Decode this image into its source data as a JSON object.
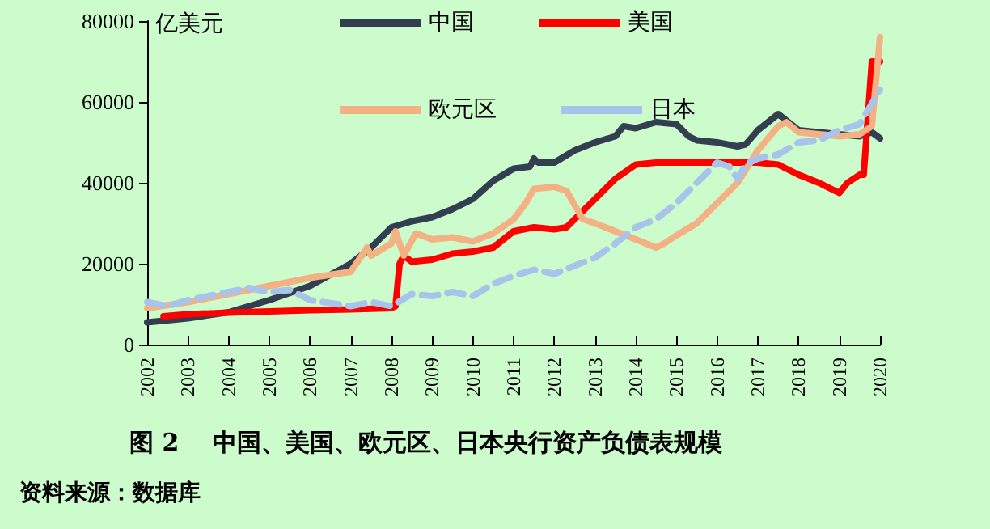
{
  "chart_data": {
    "type": "line",
    "title": "图 2    中国、美国、欧元区、日本央行资产负债表规模",
    "ylabel": "亿美元",
    "annotations": [
      "资料来源：数据库"
    ],
    "xlim": [
      2002,
      2020
    ],
    "xticks": [
      2002,
      2003,
      2004,
      2005,
      2006,
      2007,
      2008,
      2009,
      2010,
      2011,
      2012,
      2013,
      2014,
      2015,
      2016,
      2017,
      2018,
      2019,
      2020
    ],
    "ylim": [
      0,
      80000
    ],
    "yticks": [
      0,
      20000,
      40000,
      60000,
      80000
    ],
    "grid": false,
    "legend": "top",
    "marker": "none",
    "series": [
      {
        "name": "中国",
        "color": "#333f50",
        "line_style": "solid",
        "x": [
          2002,
          2003,
          2004,
          2005,
          2006,
          2007,
          2007.5,
          2008,
          2008.5,
          2009,
          2009.5,
          2010,
          2010.5,
          2011,
          2011.4,
          2011.5,
          2011.6,
          2012,
          2012.5,
          2013,
          2013.5,
          2013.7,
          2014,
          2014.5,
          2015,
          2015.3,
          2015.5,
          2016,
          2016.5,
          2016.7,
          2017,
          2017.5,
          2018,
          2018.5,
          2019,
          2019.5,
          2019.8,
          2020
        ],
        "values": [
          5500,
          6500,
          8000,
          11000,
          14500,
          20000,
          24000,
          29000,
          30500,
          31500,
          33500,
          36000,
          40500,
          43500,
          44000,
          46000,
          45000,
          45000,
          48000,
          50000,
          51500,
          54000,
          53500,
          55000,
          54500,
          51500,
          50500,
          50000,
          49000,
          49500,
          53000,
          57000,
          53000,
          52500,
          52000,
          51500,
          52500,
          51000
        ]
      },
      {
        "name": "美国",
        "color": "#ff0000",
        "line_style": "solid",
        "x": [
          2002.4,
          2003,
          2004,
          2005,
          2006,
          2007,
          2008,
          2008.1,
          2008.2,
          2008.3,
          2008.5,
          2009,
          2009.5,
          2010,
          2010.5,
          2011,
          2011.5,
          2012,
          2012.3,
          2013,
          2013.5,
          2014,
          2014.5,
          2015,
          2016,
          2017,
          2017.5,
          2018,
          2018.5,
          2019,
          2019.2,
          2019.5,
          2019.6,
          2019.8,
          2020
        ],
        "values": [
          7000,
          7500,
          7900,
          8200,
          8500,
          8700,
          9000,
          9500,
          20000,
          22000,
          20500,
          21000,
          22500,
          23000,
          24000,
          28000,
          29000,
          28500,
          29000,
          36000,
          41000,
          44500,
          45000,
          45000,
          45000,
          45000,
          44500,
          42000,
          40000,
          37500,
          40000,
          42000,
          42000,
          70000,
          70000
        ]
      },
      {
        "name": "欧元区",
        "color": "#f4b183",
        "line_style": "solid",
        "x": [
          2002,
          2003,
          2004,
          2005,
          2006,
          2007,
          2007.4,
          2007.5,
          2008,
          2008.1,
          2008.3,
          2008.6,
          2009,
          2009.5,
          2010,
          2010.5,
          2011,
          2011.3,
          2011.5,
          2012,
          2012.3,
          2012.7,
          2013,
          2013.5,
          2014,
          2014.5,
          2014.7,
          2015,
          2015.5,
          2016,
          2016.5,
          2017,
          2017.5,
          2017.7,
          2018,
          2018.5,
          2019,
          2019.5,
          2019.8,
          2020
        ],
        "values": [
          9000,
          10500,
          12500,
          14500,
          16500,
          18000,
          24000,
          22000,
          25000,
          28000,
          22000,
          27500,
          26000,
          26500,
          25500,
          27500,
          31000,
          35000,
          38500,
          39000,
          38000,
          31000,
          30000,
          28000,
          26000,
          24000,
          25000,
          27000,
          30000,
          35000,
          40000,
          48000,
          54000,
          55000,
          52500,
          52000,
          51500,
          52000,
          54000,
          76000
        ]
      },
      {
        "name": "日本",
        "color": "#a9c4eb",
        "line_style": "dashed",
        "x": [
          2002,
          2002.5,
          2003,
          2004,
          2004.5,
          2005,
          2005.5,
          2006,
          2007,
          2007.5,
          2008,
          2008.5,
          2009,
          2009.5,
          2010,
          2010.5,
          2011,
          2011.5,
          2012,
          2012.5,
          2013,
          2013.5,
          2014,
          2014.5,
          2015,
          2015.5,
          2016,
          2016.3,
          2016.5,
          2016.7,
          2017,
          2017.5,
          2018,
          2018.5,
          2019,
          2019.5,
          2020
        ],
        "values": [
          10500,
          9500,
          11000,
          13000,
          14000,
          13000,
          13500,
          11000,
          9500,
          10500,
          9500,
          12500,
          12000,
          13000,
          12000,
          15000,
          17000,
          18500,
          17500,
          19500,
          21500,
          25000,
          29000,
          31000,
          35000,
          40000,
          45000,
          44000,
          41000,
          44500,
          46000,
          47000,
          50000,
          50500,
          53000,
          54500,
          63000
        ]
      }
    ]
  }
}
